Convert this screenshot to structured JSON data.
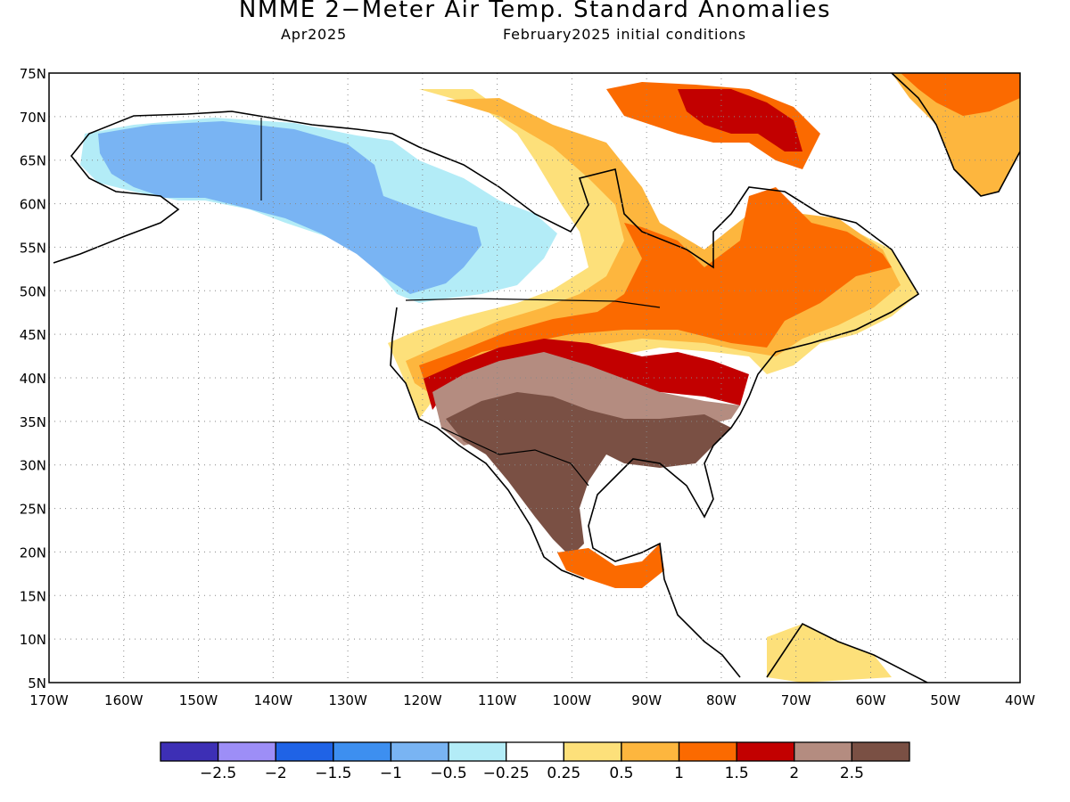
{
  "title": "NMME 2−Meter Air Temp. Standard Anomalies",
  "subtitle_left": "Apr2025",
  "subtitle_right": "February2025 initial conditions",
  "map": {
    "lon_range": [
      -170,
      -40
    ],
    "lat_range": [
      5,
      75
    ],
    "lon_ticks": [
      "170W",
      "160W",
      "150W",
      "140W",
      "130W",
      "120W",
      "110W",
      "100W",
      "90W",
      "80W",
      "70W",
      "60W",
      "50W",
      "40W"
    ],
    "lat_ticks": [
      "5N",
      "10N",
      "15N",
      "20N",
      "25N",
      "30N",
      "35N",
      "40N",
      "45N",
      "50N",
      "55N",
      "60N",
      "65N",
      "70N",
      "75N"
    ],
    "grid": true
  },
  "colorbar": {
    "colors": [
      "#3d2fb5",
      "#9d8ef7",
      "#1f63e6",
      "#3d8ff0",
      "#79b4f3",
      "#b3ecf7",
      "#ffffff",
      "#fde07a",
      "#fdb63e",
      "#fb6a00",
      "#c20000",
      "#b48c80",
      "#7a5044"
    ],
    "labels": [
      "−2.5",
      "−2",
      "−1.5",
      "−1",
      "−0.5",
      "−0.25",
      "0.25",
      "0.5",
      "1",
      "1.5",
      "2",
      "2.5"
    ]
  }
}
